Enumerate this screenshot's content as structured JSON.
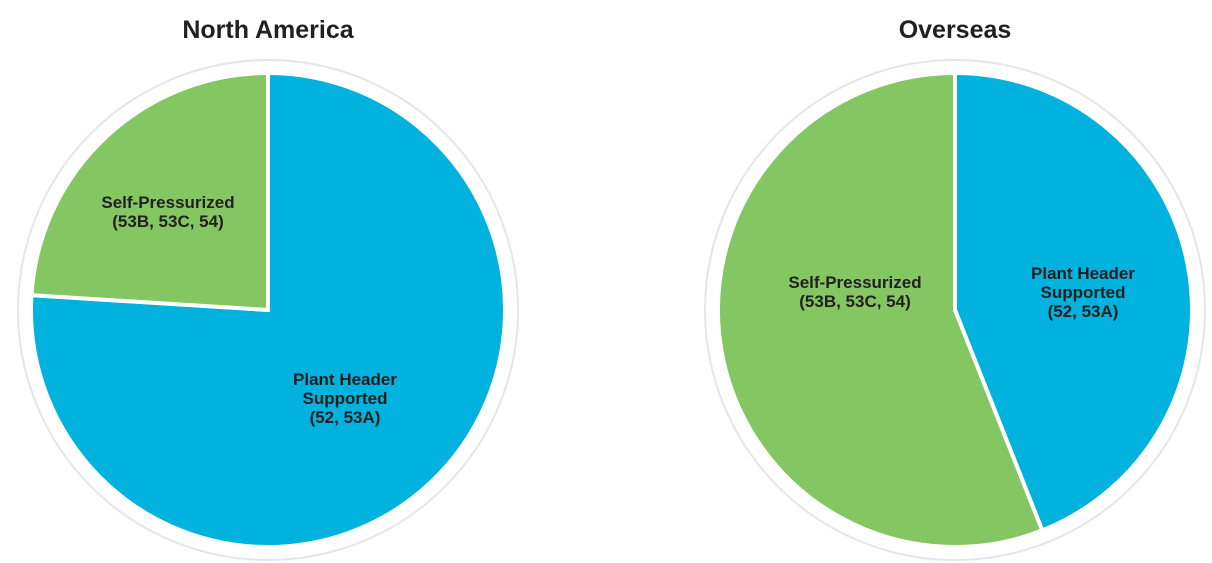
{
  "chart_data": [
    {
      "type": "pie",
      "title": "North America",
      "categories": [
        "Plant Header Supported (52, 53A)",
        "Self-Pressurized (53B, 53C, 54)"
      ],
      "values": [
        76,
        24
      ],
      "colors": [
        "#00b2dd",
        "#84c661"
      ]
    },
    {
      "type": "pie",
      "title": "Overseas",
      "categories": [
        "Plant Header Supported (52, 53A)",
        "Self-Pressurized (53B, 53C, 54)"
      ],
      "values": [
        44,
        56
      ],
      "colors": [
        "#00b2dd",
        "#84c661"
      ]
    }
  ]
}
